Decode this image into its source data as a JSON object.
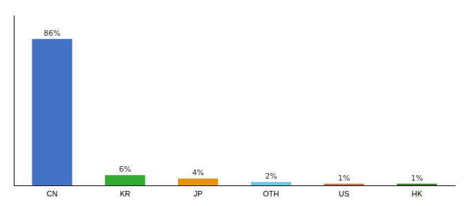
{
  "chart_data": {
    "type": "bar",
    "categories": [
      "CN",
      "KR",
      "JP",
      "OTH",
      "US",
      "HK"
    ],
    "values": [
      86,
      6,
      4,
      2,
      1,
      1
    ],
    "value_labels": [
      "86%",
      "6%",
      "4%",
      "2%",
      "1%",
      "1%"
    ],
    "data_labels": true,
    "colors": [
      "#4472C4",
      "#33A833",
      "#E8940A",
      "#6EC6E6",
      "#C0714A",
      "#3A7A3A"
    ],
    "ylim": [
      0,
      100
    ],
    "grid": false,
    "tick_labels": "x"
  }
}
